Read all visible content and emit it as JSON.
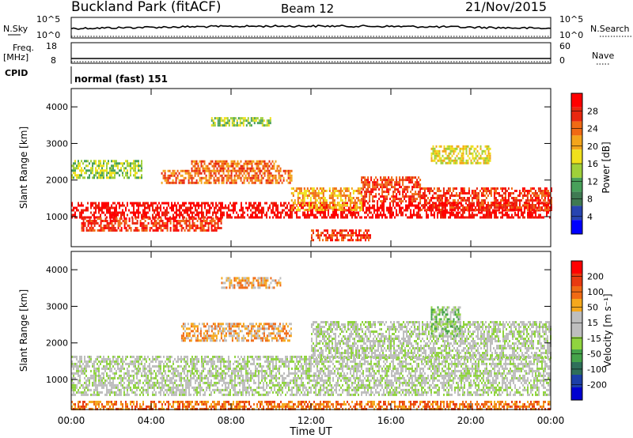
{
  "header": {
    "station": "Buckland Park (fitACF)",
    "beam": "Beam 12",
    "date": "21/Nov/2015"
  },
  "status_panels": {
    "nsky_label": "N.Sky",
    "nsky_ticks": [
      "10^5",
      "10^0"
    ],
    "nsearch_label": "N.Search",
    "nsearch_ticks": [
      "10^5",
      "10^0"
    ],
    "freq_label_1": "Freq.",
    "freq_label_2": "[MHz]",
    "freq_ticks": [
      "18",
      "8"
    ],
    "nave_label": "Nave",
    "nave_ticks": [
      "60",
      "0"
    ],
    "cpid_label": "CPID",
    "cpid_value": "normal (fast) 151"
  },
  "colors": {
    "power_scale": [
      "#0000ff",
      "#2844b0",
      "#3f7a52",
      "#48a05a",
      "#9fd03a",
      "#f0e01c",
      "#f3a51c",
      "#f06a14",
      "#e82810",
      "#ff0000"
    ],
    "velocity_scale": [
      "#0000d0",
      "#1c3fa8",
      "#2f6f5a",
      "#45a34a",
      "#90d43f",
      "#bebebe",
      "#bebebe",
      "#f5a81c",
      "#f06a14",
      "#e83a10",
      "#ff0000"
    ],
    "gray_scatter": "#bebebe",
    "orange": "#f5a81c",
    "green": "#7cd044"
  },
  "chart_data": [
    {
      "type": "heatmap",
      "panel": "power",
      "ylabel": "Slant Range [km]",
      "xlabel": "",
      "xlim_hours": [
        0,
        24
      ],
      "ylim": [
        180,
        4500
      ],
      "yticks": [
        "4000",
        "3000",
        "2000",
        "1000"
      ],
      "colorbar_label": "Power [dB]",
      "colorbar_ticks": [
        "28",
        "24",
        "20",
        "16",
        "12",
        "8",
        "4"
      ],
      "bands": [
        {
          "x0": 0.0,
          "x1": 24.0,
          "ymid": 1180,
          "halfwidth": 220,
          "level": 9
        },
        {
          "x0": 0.5,
          "x1": 7.5,
          "ymid": 800,
          "halfwidth": 180,
          "level": 8
        },
        {
          "x0": 4.5,
          "x1": 11.0,
          "ymid": 2100,
          "halfwidth": 180,
          "level": 7
        },
        {
          "x0": 6.0,
          "x1": 10.5,
          "ymid": 2400,
          "halfwidth": 140,
          "level": 7
        },
        {
          "x0": 11.0,
          "x1": 14.5,
          "ymid": 1500,
          "halfwidth": 300,
          "level": 6
        },
        {
          "x0": 14.5,
          "x1": 17.5,
          "ymid": 1750,
          "halfwidth": 350,
          "level": 8
        },
        {
          "x0": 17.5,
          "x1": 24.0,
          "ymid": 1500,
          "halfwidth": 300,
          "level": 8
        },
        {
          "x0": 12.0,
          "x1": 15.0,
          "ymid": 500,
          "halfwidth": 150,
          "level": 8
        },
        {
          "x0": 0.0,
          "x1": 3.5,
          "ymid": 2300,
          "halfwidth": 250,
          "level": 4
        },
        {
          "x0": 18.0,
          "x1": 21.0,
          "ymid": 2700,
          "halfwidth": 250,
          "level": 5
        },
        {
          "x0": 7.0,
          "x1": 10.0,
          "ymid": 3600,
          "halfwidth": 120,
          "level": 4
        }
      ]
    },
    {
      "type": "heatmap",
      "panel": "velocity",
      "ylabel": "Slant Range [km]",
      "xlabel": "Time UT",
      "xlim_hours": [
        0,
        24
      ],
      "ylim": [
        180,
        4500
      ],
      "yticks": [
        "4000",
        "3000",
        "2000",
        "1000"
      ],
      "xticks": [
        "00:00",
        "04:00",
        "08:00",
        "12:00",
        "16:00",
        "20:00",
        "00:00"
      ],
      "colorbar_label": "Velocity [m s⁻¹]",
      "colorbar_ticks": [
        "200",
        "100",
        "50",
        "15",
        "-15",
        "-50",
        "-100",
        "-200"
      ],
      "bands": [
        {
          "x0": 0.0,
          "x1": 24.0,
          "ymid": 1100,
          "halfwidth": 550,
          "level": 5
        },
        {
          "x0": 5.5,
          "x1": 11.0,
          "ymid": 2300,
          "halfwidth": 250,
          "level": 7
        },
        {
          "x0": 7.5,
          "x1": 10.5,
          "ymid": 3650,
          "halfwidth": 150,
          "level": 7
        },
        {
          "x0": 12.0,
          "x1": 24.0,
          "ymid": 2100,
          "halfwidth": 500,
          "level": 5
        },
        {
          "x0": 18.0,
          "x1": 19.5,
          "ymid": 2600,
          "halfwidth": 400,
          "level": 4
        },
        {
          "x0": 0.0,
          "x1": 24.0,
          "ymid": 300,
          "halfwidth": 120,
          "level": 8
        }
      ]
    }
  ]
}
